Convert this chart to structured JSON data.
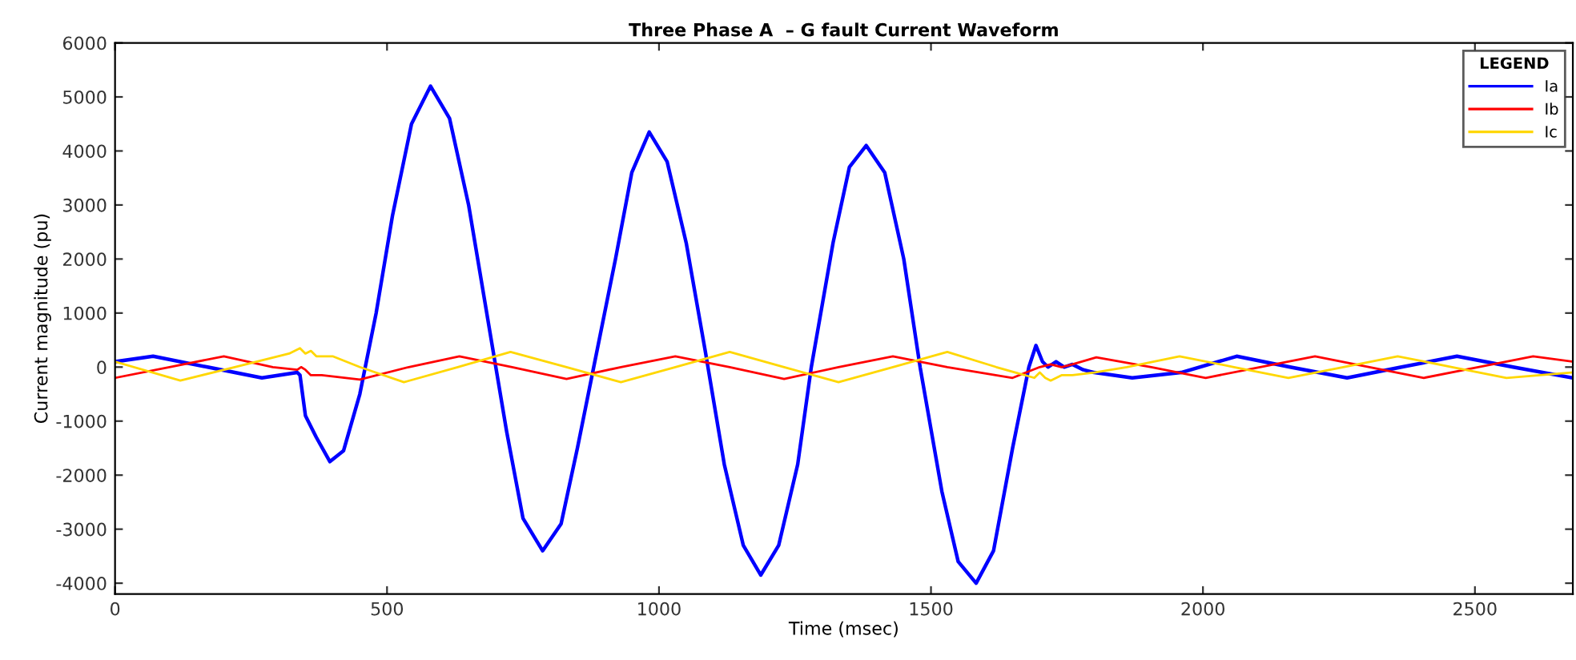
{
  "chart_data": {
    "type": "line",
    "title": "Three Phase A  – G fault Current Waveform",
    "xlabel": "Time (msec)",
    "ylabel": "Current magnitude (pu)",
    "legend_title": "LEGEND",
    "legend": "top right",
    "grid": false,
    "marker": "none",
    "line_style": "solid",
    "xlim": [
      0,
      2680
    ],
    "xticks": [
      0,
      500,
      1000,
      1500,
      2000,
      2500
    ],
    "ylim": [
      -4200,
      6000
    ],
    "yticks": [
      -4000,
      -3000,
      -2000,
      -1000,
      0,
      1000,
      2000,
      3000,
      4000,
      5000,
      6000
    ],
    "series": [
      {
        "name": "Ia",
        "color": "#0000ff",
        "x": [
          0,
          70,
          170,
          270,
          335,
          340,
          350,
          370,
          395,
          420,
          450,
          480,
          510,
          545,
          580,
          615,
          650,
          690,
          720,
          750,
          786,
          820,
          850,
          880,
          920,
          950,
          982,
          1015,
          1050,
          1085,
          1120,
          1155,
          1187,
          1220,
          1255,
          1280,
          1320,
          1350,
          1381,
          1415,
          1450,
          1480,
          1520,
          1550,
          1583,
          1615,
          1650,
          1680,
          1693,
          1705,
          1715,
          1730,
          1745,
          1760,
          1780,
          1800,
          1870,
          1960,
          2062,
          2160,
          2265,
          2365,
          2467,
          2570,
          2680
        ],
        "values": [
          100,
          200,
          0,
          -200,
          -100,
          -150,
          -900,
          -1300,
          -1750,
          -1550,
          -500,
          1000,
          2800,
          4500,
          5200,
          4600,
          3000,
          600,
          -1200,
          -2800,
          -3400,
          -2900,
          -1500,
          0,
          2000,
          3600,
          4350,
          3800,
          2300,
          300,
          -1800,
          -3300,
          -3850,
          -3300,
          -1800,
          0,
          2300,
          3700,
          4100,
          3600,
          2000,
          0,
          -2300,
          -3600,
          -4000,
          -3400,
          -1500,
          0,
          400,
          100,
          0,
          100,
          0,
          50,
          -50,
          -100,
          -200,
          -100,
          200,
          0,
          -200,
          0,
          200,
          0,
          -200
        ]
      },
      {
        "name": "Ib",
        "color": "#ff0000",
        "x": [
          0,
          100,
          200,
          290,
          335,
          342,
          350,
          360,
          380,
          450,
          540,
          633,
          730,
          830,
          930,
          1030,
          1130,
          1230,
          1330,
          1430,
          1530,
          1650,
          1700,
          1720,
          1740,
          1760,
          1804,
          1905,
          2005,
          2105,
          2206,
          2306,
          2406,
          2506,
          2607,
          2680
        ],
        "values": [
          -200,
          0,
          200,
          0,
          -50,
          0,
          -50,
          -150,
          -150,
          -230,
          0,
          200,
          0,
          -220,
          0,
          200,
          0,
          -220,
          0,
          200,
          0,
          -200,
          0,
          50,
          0,
          50,
          180,
          0,
          -200,
          0,
          200,
          0,
          -200,
          0,
          200,
          100
        ]
      },
      {
        "name": "Ic",
        "color": "#ffd700",
        "x": [
          0,
          120,
          220,
          320,
          340,
          350,
          360,
          370,
          400,
          450,
          531,
          630,
          727,
          830,
          930,
          1030,
          1130,
          1230,
          1330,
          1430,
          1530,
          1620,
          1690,
          1700,
          1710,
          1720,
          1740,
          1760,
          1800,
          1860,
          1957,
          2057,
          2157,
          2258,
          2358,
          2458,
          2558,
          2680
        ],
        "values": [
          100,
          -250,
          0,
          250,
          350,
          250,
          300,
          200,
          200,
          0,
          -280,
          0,
          280,
          0,
          -280,
          0,
          280,
          0,
          -280,
          0,
          280,
          0,
          -200,
          -100,
          -200,
          -250,
          -150,
          -150,
          -100,
          0,
          200,
          0,
          -200,
          0,
          200,
          0,
          -200,
          -100
        ]
      }
    ]
  }
}
